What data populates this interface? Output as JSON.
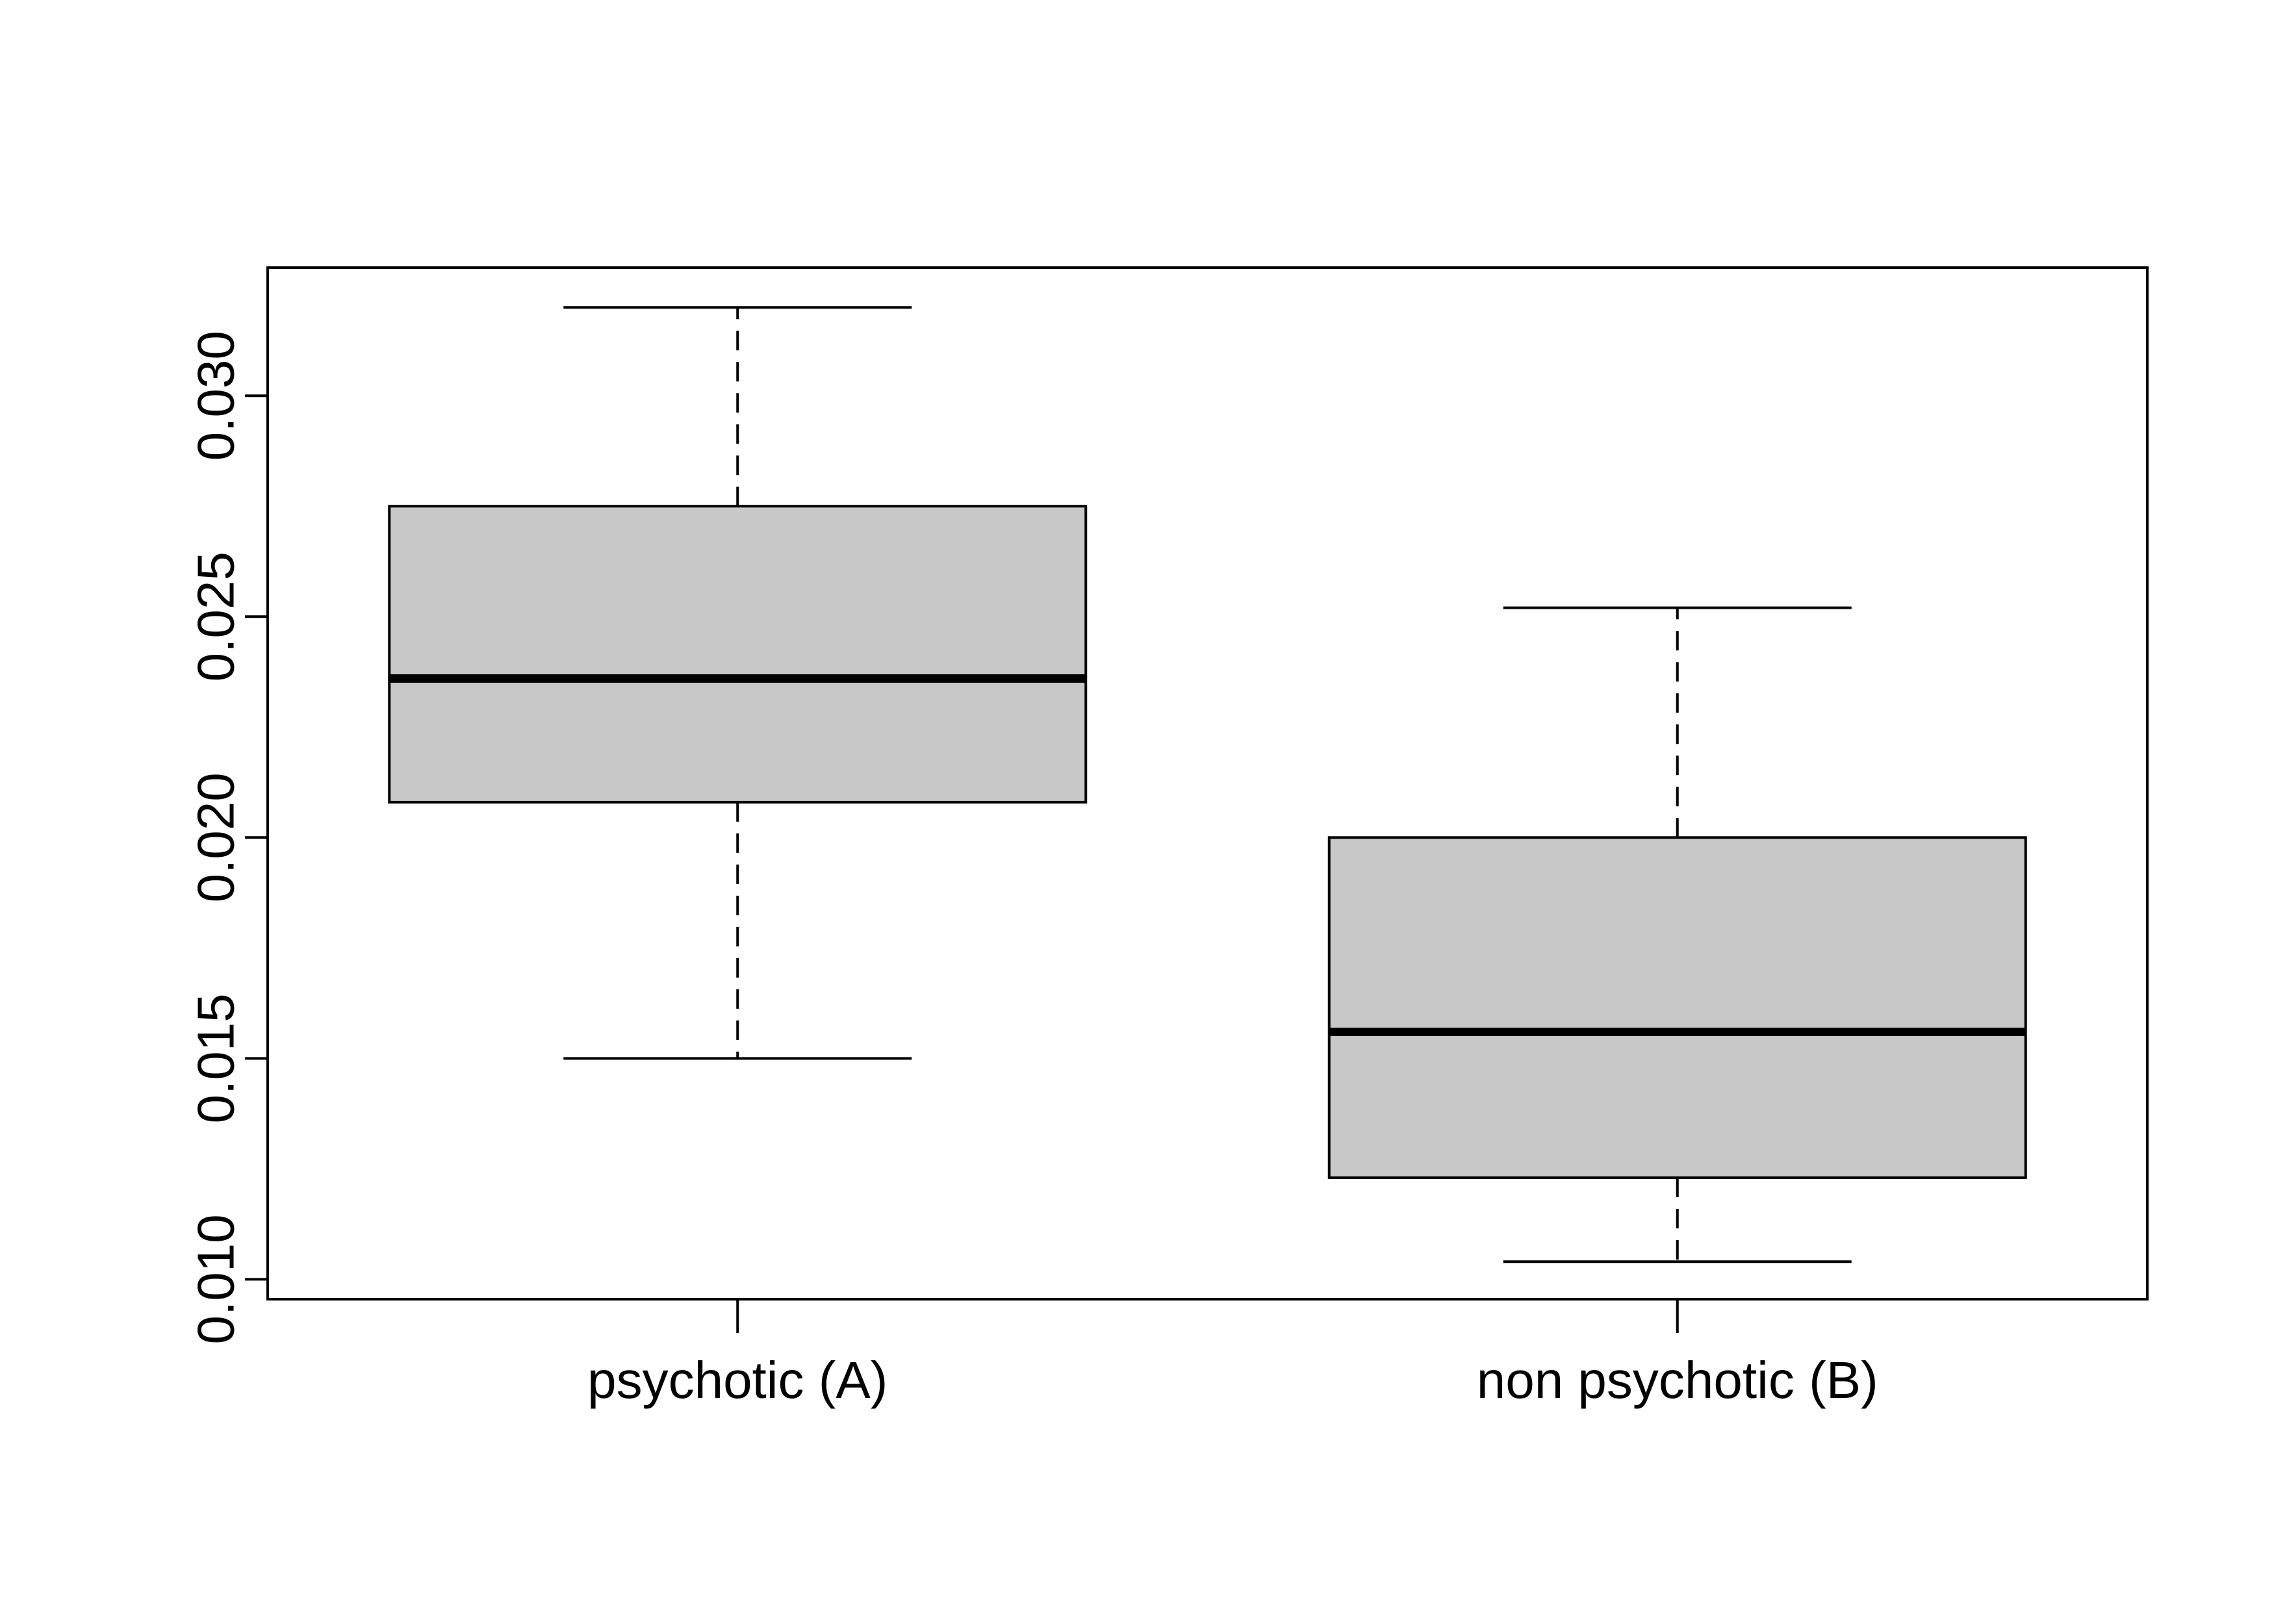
{
  "chart_data": {
    "type": "box",
    "categories": [
      "psychotic (A)",
      "non psychotic (B)"
    ],
    "series": [
      {
        "values": {
          "min": 0.015,
          "q1": 0.0208,
          "median": 0.0236,
          "q3": 0.0275,
          "max": 0.032
        }
      },
      {
        "values": {
          "min": 0.0104,
          "q1": 0.0123,
          "median": 0.0156,
          "q3": 0.02,
          "max": 0.0252
        }
      }
    ],
    "y_ticks": [
      "0.010",
      "0.015",
      "0.020",
      "0.025",
      "0.030"
    ],
    "ylim": [
      0.00955,
      0.0329
    ],
    "grid": false,
    "colors": {
      "box_fill": "#c8c8c8",
      "stroke": "#000000"
    }
  }
}
